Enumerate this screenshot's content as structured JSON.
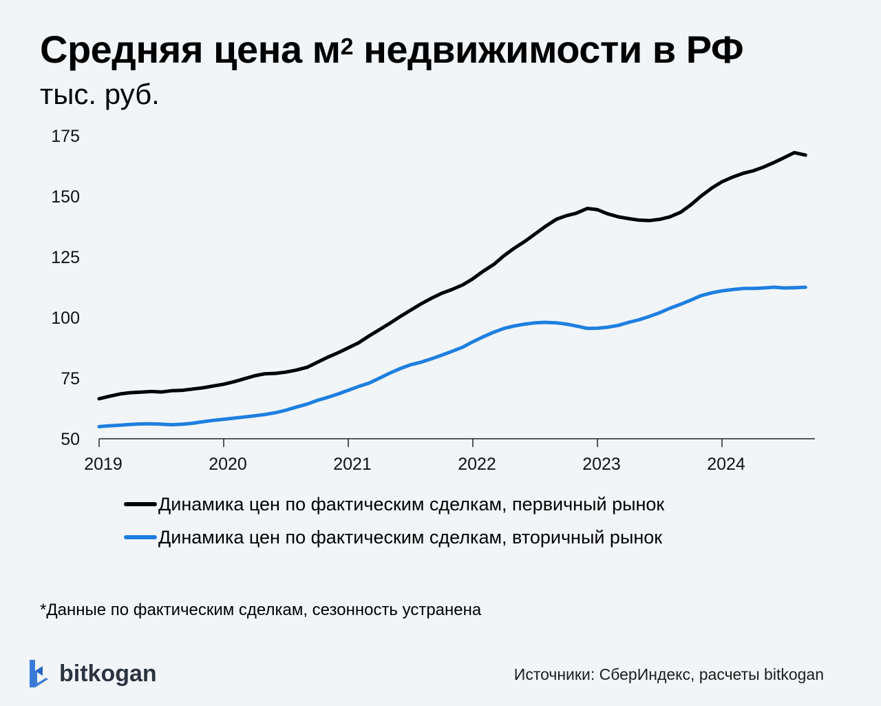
{
  "header": {
    "title_main": "Средняя цена м",
    "title_sup": "2",
    "title_rest": " недвижимости в РФ",
    "subtitle": "тыс. руб."
  },
  "footnote": "*Данные по фактическим сделкам, сезонность устранена",
  "brand": {
    "name": "bitkogan",
    "logo_icon": "bitkogan-logo-icon",
    "color": "#3b7bd8"
  },
  "sources": "Источники: СберИндекс, расчеты bitkogan",
  "chart_data": {
    "type": "line",
    "title": "Средняя цена м² недвижимости в РФ",
    "ylabel": "тыс. руб.",
    "xlabel": "",
    "xlim": [
      2019,
      2024.75
    ],
    "ylim": [
      50,
      175
    ],
    "xticks": [
      "2019",
      "2020",
      "2021",
      "2022",
      "2023",
      "2024"
    ],
    "yticks": [
      "50",
      "75",
      "100",
      "125",
      "150",
      "175"
    ],
    "grid": false,
    "legend_position": "bottom",
    "series": [
      {
        "name": "Динамика цен по фактическим сделкам, первичный рынок",
        "color": "#000000",
        "x": [
          2019.0,
          2019.08,
          2019.17,
          2019.25,
          2019.33,
          2019.42,
          2019.5,
          2019.58,
          2019.67,
          2019.75,
          2019.83,
          2019.92,
          2020.0,
          2020.08,
          2020.17,
          2020.25,
          2020.33,
          2020.42,
          2020.5,
          2020.58,
          2020.67,
          2020.75,
          2020.83,
          2020.92,
          2021.0,
          2021.08,
          2021.17,
          2021.25,
          2021.33,
          2021.42,
          2021.5,
          2021.58,
          2021.67,
          2021.75,
          2021.83,
          2021.92,
          2022.0,
          2022.08,
          2022.17,
          2022.25,
          2022.33,
          2022.42,
          2022.5,
          2022.58,
          2022.67,
          2022.75,
          2022.83,
          2022.92,
          2023.0,
          2023.08,
          2023.17,
          2023.25,
          2023.33,
          2023.42,
          2023.5,
          2023.58,
          2023.67,
          2023.75,
          2023.83,
          2023.92,
          2024.0,
          2024.08,
          2024.17,
          2024.25,
          2024.33,
          2024.42,
          2024.5,
          2024.58,
          2024.67
        ],
        "y": [
          66.5,
          67.5,
          68.5,
          69.0,
          69.2,
          69.5,
          69.3,
          69.8,
          70.0,
          70.5,
          71.0,
          71.8,
          72.5,
          73.5,
          74.8,
          76.0,
          76.8,
          77.0,
          77.5,
          78.3,
          79.5,
          81.5,
          83.5,
          85.5,
          87.5,
          89.5,
          92.5,
          95.0,
          97.5,
          100.5,
          103.0,
          105.5,
          108.0,
          110.0,
          111.5,
          113.5,
          116.0,
          119.0,
          122.0,
          125.5,
          128.5,
          131.5,
          134.5,
          137.5,
          140.5,
          142.0,
          143.0,
          145.0,
          144.5,
          142.8,
          141.5,
          140.8,
          140.2,
          140.0,
          140.5,
          141.5,
          143.5,
          146.5,
          150.0,
          153.5,
          156.0,
          157.8,
          159.5,
          160.5,
          162.0,
          164.0,
          166.0,
          168.0,
          167.0
        ]
      },
      {
        "name": "Динамика цен по фактическим сделкам, вторичный рынок",
        "color": "#1e7fe0",
        "x": [
          2019.0,
          2019.08,
          2019.17,
          2019.25,
          2019.33,
          2019.42,
          2019.5,
          2019.58,
          2019.67,
          2019.75,
          2019.83,
          2019.92,
          2020.0,
          2020.08,
          2020.17,
          2020.25,
          2020.33,
          2020.42,
          2020.5,
          2020.58,
          2020.67,
          2020.75,
          2020.83,
          2020.92,
          2021.0,
          2021.08,
          2021.17,
          2021.25,
          2021.33,
          2021.42,
          2021.5,
          2021.58,
          2021.67,
          2021.75,
          2021.83,
          2021.92,
          2022.0,
          2022.08,
          2022.17,
          2022.25,
          2022.33,
          2022.42,
          2022.5,
          2022.58,
          2022.67,
          2022.75,
          2022.83,
          2022.92,
          2023.0,
          2023.08,
          2023.17,
          2023.25,
          2023.33,
          2023.42,
          2023.5,
          2023.58,
          2023.67,
          2023.75,
          2023.83,
          2023.92,
          2024.0,
          2024.08,
          2024.17,
          2024.25,
          2024.33,
          2024.42,
          2024.5,
          2024.58,
          2024.67
        ],
        "y": [
          55.0,
          55.3,
          55.6,
          55.9,
          56.1,
          56.2,
          56.0,
          55.8,
          56.0,
          56.4,
          57.0,
          57.6,
          58.0,
          58.5,
          59.0,
          59.5,
          60.0,
          60.8,
          61.8,
          63.0,
          64.3,
          65.8,
          67.0,
          68.5,
          70.0,
          71.5,
          73.0,
          75.0,
          77.0,
          79.0,
          80.5,
          81.5,
          83.0,
          84.5,
          86.0,
          87.8,
          90.0,
          92.0,
          94.0,
          95.5,
          96.5,
          97.3,
          97.8,
          98.0,
          97.8,
          97.3,
          96.5,
          95.5,
          95.6,
          96.0,
          96.8,
          98.0,
          99.0,
          100.5,
          102.0,
          103.8,
          105.5,
          107.2,
          109.0,
          110.2,
          111.0,
          111.5,
          112.0,
          112.0,
          112.2,
          112.5,
          112.2,
          112.3,
          112.5
        ]
      }
    ]
  }
}
